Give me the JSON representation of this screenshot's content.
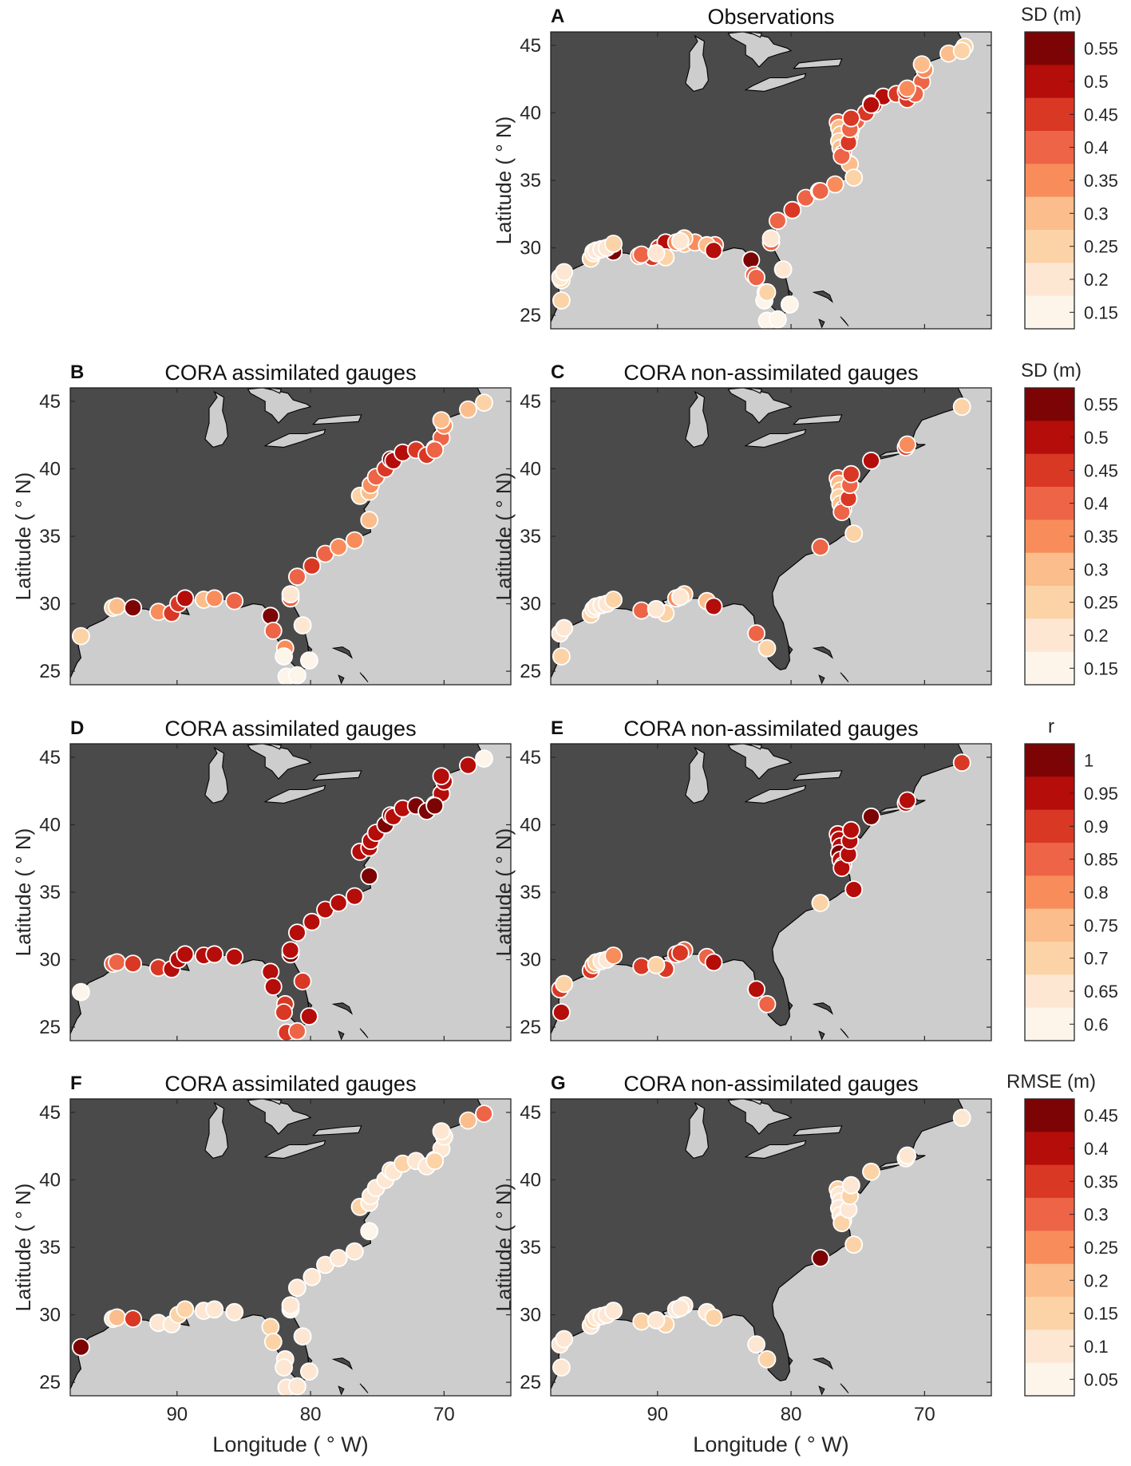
{
  "figure": {
    "colors": {
      "land": "#4a4a4a",
      "ocean": "#cdcdcd",
      "marker_edge": "#ffffff"
    },
    "x_ticks": [
      "90",
      "80",
      "70"
    ],
    "y_ticks": [
      "25",
      "30",
      "35",
      "40",
      "45"
    ],
    "xlabel": "Longitude ( ° W)",
    "ylabel": "Latitude ( ° N)"
  },
  "panels": [
    {
      "id": "A",
      "title": "Observations",
      "metric": "sd"
    },
    {
      "id": "B",
      "title": "CORA assimilated gauges",
      "metric": "sd"
    },
    {
      "id": "C",
      "title": "CORA non-assimilated gauges",
      "metric": "sd"
    },
    {
      "id": "D",
      "title": "CORA assimilated gauges",
      "metric": "r"
    },
    {
      "id": "E",
      "title": "CORA non-assimilated gauges",
      "metric": "r"
    },
    {
      "id": "F",
      "title": "CORA assimilated gauges",
      "metric": "rmse"
    },
    {
      "id": "G",
      "title": "CORA non-assimilated gauges",
      "metric": "rmse"
    }
  ],
  "colorbars": [
    {
      "label": "SD (m)",
      "ticks": [
        "0.55",
        "0.5",
        "0.45",
        "0.4",
        "0.35",
        "0.3",
        "0.25",
        "0.2",
        "0.15"
      ]
    },
    {
      "label": "SD (m)",
      "ticks": [
        "0.55",
        "0.5",
        "0.45",
        "0.4",
        "0.35",
        "0.3",
        "0.25",
        "0.2",
        "0.15"
      ]
    },
    {
      "label": "r",
      "ticks": [
        "1",
        "0.95",
        "0.9",
        "0.85",
        "0.8",
        "0.75",
        "0.7",
        "0.65",
        "0.6"
      ]
    },
    {
      "label": "RMSE (m)",
      "ticks": [
        "0.45",
        "0.4",
        "0.35",
        "0.3",
        "0.25",
        "0.2",
        "0.15",
        "0.1",
        "0.05"
      ]
    }
  ],
  "colormap": [
    "#fdf4ea",
    "#fde7d3",
    "#fcd3a6",
    "#fbbd8b",
    "#f88d5b",
    "#ed6446",
    "#d93825",
    "#b50d0a",
    "#7d0404"
  ],
  "gauges_assimilated": [
    [
      -97.2,
      27.6
    ],
    [
      -94.8,
      29.7
    ],
    [
      -94.5,
      29.8
    ],
    [
      -93.3,
      29.7
    ],
    [
      -91.4,
      29.4
    ],
    [
      -90.4,
      29.3
    ],
    [
      -89.9,
      30.0
    ],
    [
      -89.4,
      30.4
    ],
    [
      -88.0,
      30.3
    ],
    [
      -87.2,
      30.4
    ],
    [
      -85.7,
      30.2
    ],
    [
      -83.0,
      29.1
    ],
    [
      -82.8,
      28.0
    ],
    [
      -81.9,
      26.7
    ],
    [
      -82.0,
      26.1
    ],
    [
      -81.8,
      24.6
    ],
    [
      -81.0,
      24.7
    ],
    [
      -81.5,
      30.4
    ],
    [
      -81.5,
      30.7
    ],
    [
      -80.6,
      28.4
    ],
    [
      -80.1,
      25.8
    ],
    [
      -81.0,
      32.0
    ],
    [
      -79.9,
      32.8
    ],
    [
      -78.9,
      33.7
    ],
    [
      -77.9,
      34.2
    ],
    [
      -76.7,
      34.7
    ],
    [
      -75.6,
      36.2
    ],
    [
      -76.3,
      38.0
    ],
    [
      -75.6,
      38.3
    ],
    [
      -75.5,
      38.8
    ],
    [
      -75.1,
      39.4
    ],
    [
      -74.4,
      40.0
    ],
    [
      -74.0,
      40.7
    ],
    [
      -73.8,
      40.6
    ],
    [
      -73.1,
      41.2
    ],
    [
      -72.1,
      41.4
    ],
    [
      -71.3,
      41.0
    ],
    [
      -70.7,
      41.5
    ],
    [
      -70.2,
      42.3
    ],
    [
      -70.7,
      41.4
    ],
    [
      -70.0,
      43.2
    ],
    [
      -70.2,
      43.6
    ],
    [
      -68.2,
      44.4
    ],
    [
      -67.0,
      44.9
    ]
  ],
  "gauges_nonassimilated": [
    [
      -97.3,
      27.8
    ],
    [
      -97.0,
      28.2
    ],
    [
      -97.2,
      26.1
    ],
    [
      -95.0,
      29.2
    ],
    [
      -94.8,
      29.6
    ],
    [
      -94.6,
      29.8
    ],
    [
      -94.2,
      29.9
    ],
    [
      -93.8,
      30.0
    ],
    [
      -93.3,
      30.3
    ],
    [
      -91.2,
      29.5
    ],
    [
      -89.4,
      29.3
    ],
    [
      -90.1,
      29.6
    ],
    [
      -88.6,
      30.4
    ],
    [
      -88.0,
      30.7
    ],
    [
      -88.3,
      30.5
    ],
    [
      -86.3,
      30.2
    ],
    [
      -85.8,
      29.8
    ],
    [
      -82.6,
      27.8
    ],
    [
      -81.8,
      26.7
    ],
    [
      -77.8,
      34.2
    ],
    [
      -76.5,
      39.3
    ],
    [
      -76.4,
      38.9
    ],
    [
      -76.3,
      38.4
    ],
    [
      -76.4,
      37.9
    ],
    [
      -76.3,
      37.4
    ],
    [
      -76.1,
      37.0
    ],
    [
      -76.2,
      36.8
    ],
    [
      -75.7,
      37.8
    ],
    [
      -75.6,
      38.8
    ],
    [
      -75.5,
      39.6
    ],
    [
      -75.3,
      35.2
    ],
    [
      -74.0,
      40.6
    ],
    [
      -71.4,
      41.6
    ],
    [
      -71.3,
      41.8
    ],
    [
      -67.2,
      44.6
    ]
  ],
  "gauge_values": {
    "sd": {
      "assimilated": [
        0.23,
        0.26,
        0.3,
        0.55,
        0.35,
        0.43,
        0.45,
        0.5,
        0.3,
        0.37,
        0.38,
        0.55,
        0.42,
        0.33,
        0.16,
        0.15,
        0.16,
        0.38,
        0.2,
        0.18,
        0.12,
        0.4,
        0.43,
        0.38,
        0.35,
        0.33,
        0.3,
        0.25,
        0.3,
        0.33,
        0.4,
        0.45,
        0.55,
        0.48,
        0.5,
        0.45,
        0.45,
        0.42,
        0.4,
        0.4,
        0.35,
        0.3,
        0.3,
        0.25
      ],
      "nonassimilated": [
        0.18,
        0.2,
        0.25,
        0.25,
        0.22,
        0.2,
        0.2,
        0.2,
        0.25,
        0.4,
        0.23,
        0.2,
        0.35,
        0.3,
        0.2,
        0.28,
        0.52,
        0.38,
        0.25,
        0.38,
        0.38,
        0.3,
        0.3,
        0.25,
        0.28,
        0.48,
        0.42,
        0.45,
        0.4,
        0.45,
        0.25,
        0.5,
        0.45,
        0.35,
        0.23
      ]
    },
    "r": {
      "assimilated": [
        0.6,
        0.85,
        0.85,
        0.9,
        0.9,
        0.95,
        0.95,
        0.95,
        0.95,
        0.95,
        0.95,
        0.95,
        0.95,
        0.9,
        0.9,
        0.9,
        0.85,
        1.0,
        0.95,
        0.9,
        0.95,
        0.95,
        0.95,
        0.95,
        0.95,
        0.95,
        1.0,
        0.95,
        0.95,
        0.95,
        0.95,
        1.0,
        1.0,
        0.95,
        0.95,
        1.0,
        1.0,
        0.95,
        0.95,
        1.0,
        0.95,
        0.95,
        0.95,
        0.6
      ],
      "nonassimilated": [
        0.9,
        0.7,
        0.95,
        0.9,
        0.8,
        0.7,
        0.65,
        0.65,
        0.8,
        0.9,
        0.9,
        0.7,
        0.9,
        0.85,
        0.9,
        0.85,
        0.95,
        0.95,
        0.85,
        0.7,
        0.95,
        0.95,
        0.95,
        1.0,
        0.95,
        0.95,
        0.95,
        0.95,
        0.95,
        0.95,
        0.95,
        1.0,
        0.95,
        0.95,
        0.9
      ]
    },
    "rmse": {
      "assimilated": [
        0.45,
        0.12,
        0.2,
        0.35,
        0.1,
        0.12,
        0.15,
        0.15,
        0.12,
        0.12,
        0.12,
        0.15,
        0.15,
        0.1,
        0.1,
        0.1,
        0.1,
        0.05,
        0.12,
        0.1,
        0.1,
        0.1,
        0.1,
        0.1,
        0.1,
        0.1,
        0.05,
        0.15,
        0.1,
        0.1,
        0.1,
        0.12,
        0.15,
        0.12,
        0.15,
        0.1,
        0.08,
        0.12,
        0.12,
        0.15,
        0.1,
        0.12,
        0.2,
        0.3
      ],
      "nonassimilated": [
        0.1,
        0.1,
        0.12,
        0.12,
        0.15,
        0.1,
        0.1,
        0.12,
        0.12,
        0.15,
        0.15,
        0.1,
        0.12,
        0.1,
        0.12,
        0.12,
        0.15,
        0.1,
        0.15,
        0.45,
        0.15,
        0.12,
        0.1,
        0.12,
        0.1,
        0.12,
        0.15,
        0.1,
        0.15,
        0.12,
        0.15,
        0.15,
        0.1,
        0.1,
        0.1
      ]
    }
  }
}
